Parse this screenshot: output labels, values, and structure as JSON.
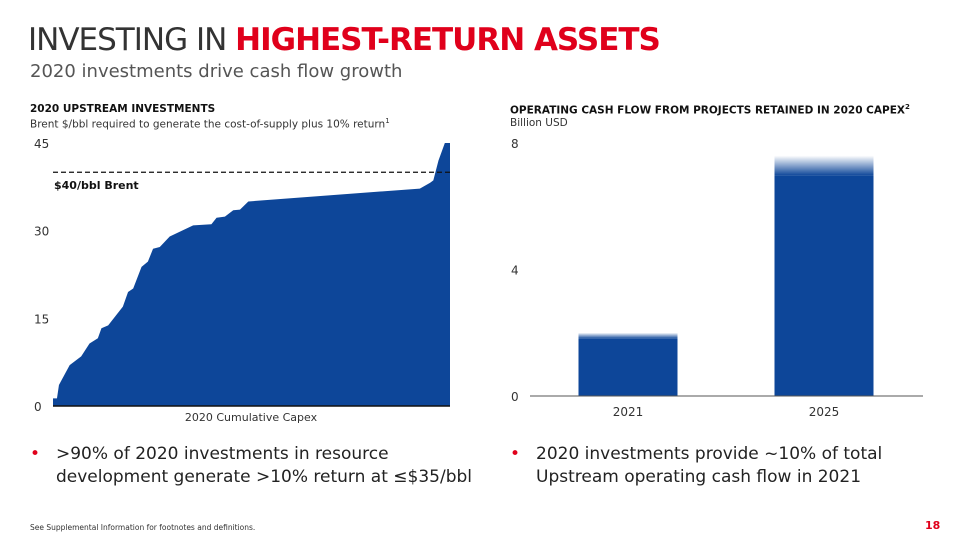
{
  "header": {
    "title_plain": "INVESTING IN ",
    "title_highlight": "HIGHEST-RETURN ASSETS",
    "subtitle": "2020 investments drive cash flow growth"
  },
  "left_chart_header": {
    "title": "2020 UPSTREAM INVESTMENTS",
    "subtitle": "Brent $/bbl required to generate the cost-of-supply plus 10% return",
    "footnote": "1"
  },
  "right_chart_header": {
    "title": "OPERATING CASH FLOW FROM PROJECTS RETAINED IN 2020 CAPEX",
    "footnote": "2",
    "subtitle": "Billion USD"
  },
  "chart_data": [
    {
      "type": "area",
      "title": "2020 UPSTREAM INVESTMENTS",
      "xlabel": "2020 Cumulative Capex",
      "ylabel": "Brent $/bbl",
      "ylim": [
        0,
        45
      ],
      "yticks": [
        "0",
        "15",
        "30",
        "45"
      ],
      "x_percent": [
        0,
        1,
        1.5,
        4.2,
        7.1,
        9.2,
        11.3,
        12.2,
        13.9,
        17.6,
        18.9,
        20.2,
        22.3,
        23.9,
        25.2,
        26.9,
        29.4,
        35.3,
        39.9,
        41.2,
        43.3,
        45.4,
        47.1,
        49.2,
        92.4,
        95,
        95.8,
        97.1,
        98.7,
        100
      ],
      "y": [
        1.3,
        1.3,
        3.6,
        7,
        8.5,
        10.7,
        11.6,
        13.3,
        13.8,
        17,
        19.5,
        20.1,
        23.8,
        24.7,
        26.9,
        27.2,
        29,
        30.9,
        31.1,
        32.2,
        32.4,
        33.5,
        33.6,
        35,
        37.2,
        38.2,
        38.6,
        42,
        45,
        45
      ],
      "reference_line": {
        "value": 40,
        "label": "$40/bbl Brent"
      },
      "color": "#0d4699"
    },
    {
      "type": "bar",
      "title": "OPERATING CASH FLOW FROM PROJECTS RETAINED IN 2020 CAPEX",
      "ylabel": "Billion USD",
      "categories": [
        "2021",
        "2025"
      ],
      "values": [
        2.0,
        7.6
      ],
      "ylim": [
        0,
        8
      ],
      "yticks": [
        "0",
        "4",
        "8"
      ],
      "color": "#0d4699"
    }
  ],
  "bullets": [
    ">90% of 2020 investments in resource development generate >10% return at ≤$35/bbl",
    "2020 investments provide ~10% of total Upstream operating cash flow in 2021"
  ],
  "bullet_symbol": "•",
  "footer": "See Supplemental Information for footnotes and definitions.",
  "page_number": "18"
}
